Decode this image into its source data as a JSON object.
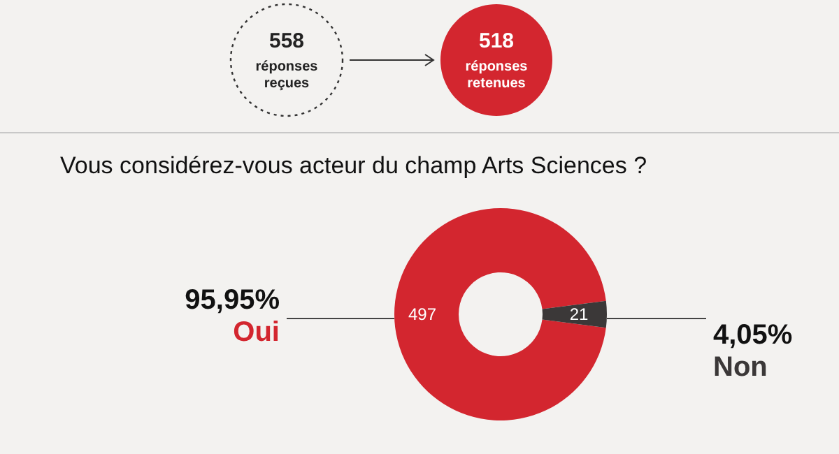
{
  "chart_data": {
    "type": "donut",
    "title": "Vous considérez-vous acteur du champ Arts Sciences ?",
    "annotations": [
      "558 réponses reçues",
      "518 réponses retenues",
      {
        "text": "497",
        "x": "Oui"
      },
      {
        "text": "21",
        "x": "Non"
      }
    ],
    "categories": [
      "Oui",
      "Non"
    ],
    "values": [
      95.95,
      4.05
    ],
    "colors": [
      "#d3262f",
      "#3b3838"
    ],
    "value_labels": [
      "95,95%",
      "4,05%"
    ],
    "legend": false
  }
}
